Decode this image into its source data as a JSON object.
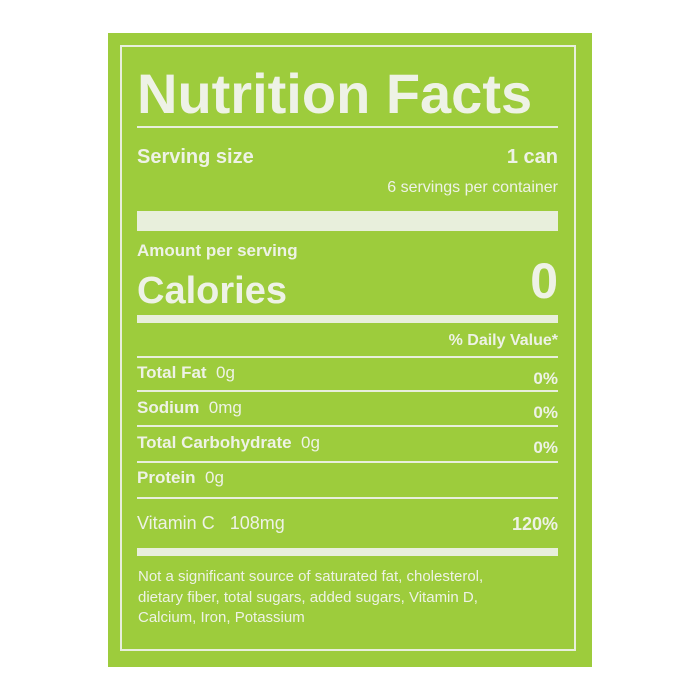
{
  "label": {
    "title": "Nutrition Facts",
    "serving_size_label": "Serving size",
    "serving_size_value": "1 can",
    "servings_per_container": "6 servings per container",
    "amount_per_serving": "Amount per serving",
    "calories_label": "Calories",
    "calories_value": "0",
    "daily_value_header": "% Daily Value*",
    "nutrients": [
      {
        "name": "Total Fat",
        "amount": "0g",
        "dv": "0%"
      },
      {
        "name": "Sodium",
        "amount": "0mg",
        "dv": "0%"
      },
      {
        "name": "Total Carbohydrate",
        "amount": "0g",
        "dv": "0%"
      },
      {
        "name": "Protein",
        "amount": "0g",
        "dv": ""
      }
    ],
    "vitamin": {
      "name": "Vitamin C",
      "amount": "108mg",
      "dv": "120%"
    },
    "footnote_lines": [
      "Not a significant source of saturated fat, cholesterol,",
      "dietary fiber, total sugars, added sugars, Vitamin D,",
      "Calcium, Iron, Potassium"
    ]
  },
  "colors": {
    "background": "#9dcc3c",
    "text": "#eef2e6"
  }
}
